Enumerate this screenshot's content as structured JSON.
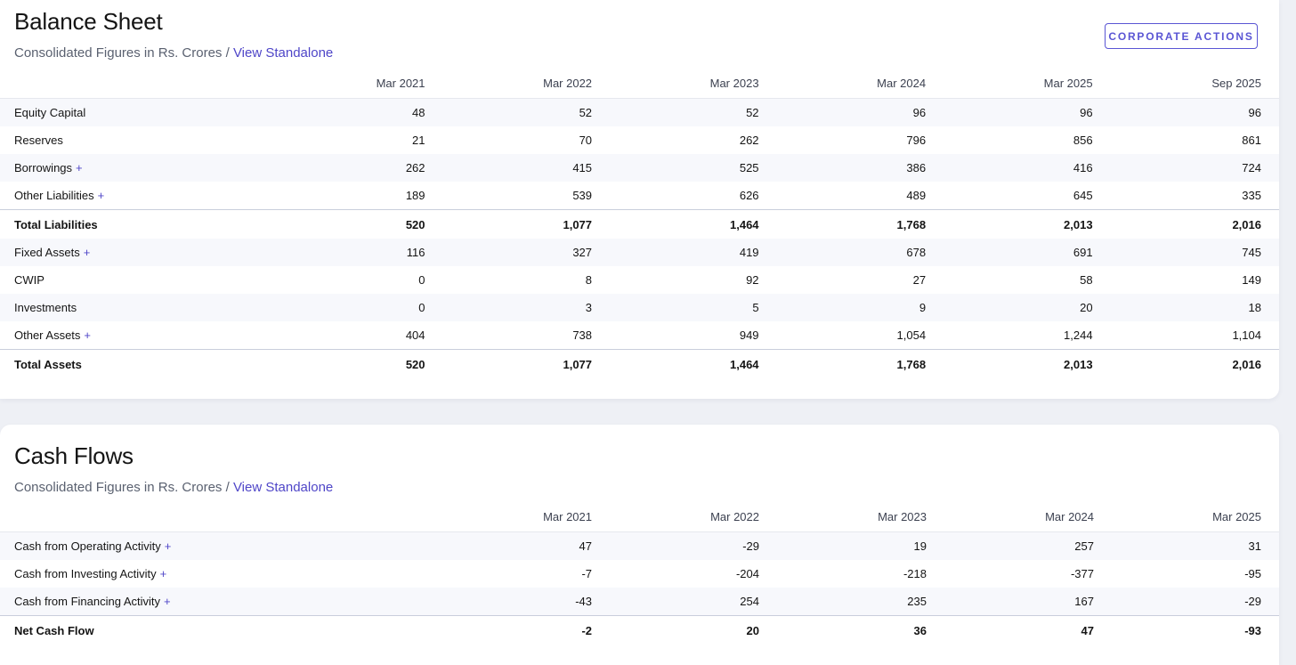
{
  "balance_sheet": {
    "title": "Balance Sheet",
    "subtitle_prefix": "Consolidated Figures in Rs. Crores / ",
    "subtitle_link": "View Standalone",
    "corporate_actions_label": "CORPORATE ACTIONS",
    "columns": [
      "Mar 2021",
      "Mar 2022",
      "Mar 2023",
      "Mar 2024",
      "Mar 2025",
      "Sep 2025"
    ],
    "rows": [
      {
        "label": "Equity Capital",
        "expandable": false,
        "total": false,
        "values": [
          "48",
          "52",
          "52",
          "96",
          "96",
          "96"
        ]
      },
      {
        "label": "Reserves",
        "expandable": false,
        "total": false,
        "values": [
          "21",
          "70",
          "262",
          "796",
          "856",
          "861"
        ]
      },
      {
        "label": "Borrowings",
        "expandable": true,
        "total": false,
        "values": [
          "262",
          "415",
          "525",
          "386",
          "416",
          "724"
        ]
      },
      {
        "label": "Other Liabilities",
        "expandable": true,
        "total": false,
        "values": [
          "189",
          "539",
          "626",
          "489",
          "645",
          "335"
        ]
      },
      {
        "label": "Total Liabilities",
        "expandable": false,
        "total": true,
        "values": [
          "520",
          "1,077",
          "1,464",
          "1,768",
          "2,013",
          "2,016"
        ]
      },
      {
        "label": "Fixed Assets",
        "expandable": true,
        "total": false,
        "values": [
          "116",
          "327",
          "419",
          "678",
          "691",
          "745"
        ]
      },
      {
        "label": "CWIP",
        "expandable": false,
        "total": false,
        "values": [
          "0",
          "8",
          "92",
          "27",
          "58",
          "149"
        ]
      },
      {
        "label": "Investments",
        "expandable": false,
        "total": false,
        "values": [
          "0",
          "3",
          "5",
          "9",
          "20",
          "18"
        ]
      },
      {
        "label": "Other Assets",
        "expandable": true,
        "total": false,
        "values": [
          "404",
          "738",
          "949",
          "1,054",
          "1,244",
          "1,104"
        ]
      },
      {
        "label": "Total Assets",
        "expandable": false,
        "total": true,
        "values": [
          "520",
          "1,077",
          "1,464",
          "1,768",
          "2,013",
          "2,016"
        ]
      }
    ]
  },
  "cash_flows": {
    "title": "Cash Flows",
    "subtitle_prefix": "Consolidated Figures in Rs. Crores / ",
    "subtitle_link": "View Standalone",
    "columns": [
      "Mar 2021",
      "Mar 2022",
      "Mar 2023",
      "Mar 2024",
      "Mar 2025"
    ],
    "rows": [
      {
        "label": "Cash from Operating Activity",
        "expandable": true,
        "total": false,
        "values": [
          "47",
          "-29",
          "19",
          "257",
          "31"
        ]
      },
      {
        "label": "Cash from Investing Activity",
        "expandable": true,
        "total": false,
        "values": [
          "-7",
          "-204",
          "-218",
          "-377",
          "-95"
        ]
      },
      {
        "label": "Cash from Financing Activity",
        "expandable": true,
        "total": false,
        "values": [
          "-43",
          "254",
          "235",
          "167",
          "-29"
        ]
      },
      {
        "label": "Net Cash Flow",
        "expandable": false,
        "total": true,
        "values": [
          "-2",
          "20",
          "36",
          "47",
          "-93"
        ]
      }
    ]
  },
  "expand_symbol": "+",
  "colors": {
    "accent": "#4f46c8",
    "stripe": "#f7f8fc",
    "page_background": "#eef0f5"
  }
}
